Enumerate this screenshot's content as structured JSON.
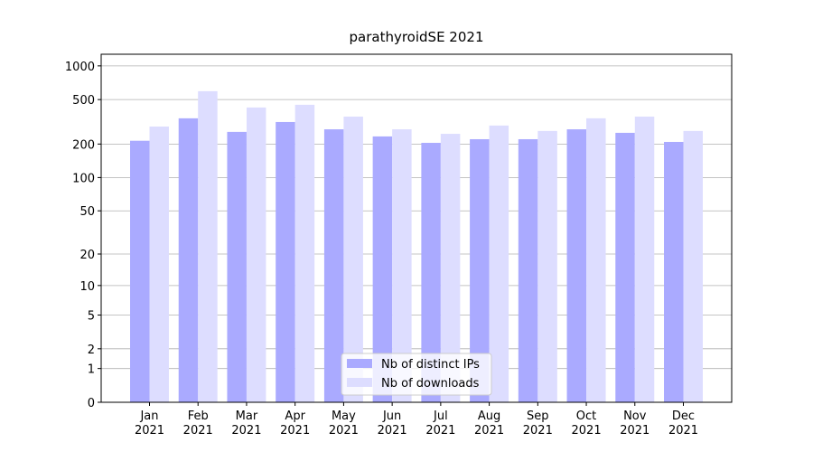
{
  "chart_data": {
    "type": "bar",
    "title": "parathyroidSE 2021",
    "categories": [
      "Jan\n2021",
      "Feb\n2021",
      "Mar\n2021",
      "Apr\n2021",
      "May\n2021",
      "Jun\n2021",
      "Jul\n2021",
      "Aug\n2021",
      "Sep\n2021",
      "Oct\n2021",
      "Nov\n2021",
      "Dec\n2021"
    ],
    "series": [
      {
        "name": "Nb of distinct IPs",
        "color": "#aaaaff",
        "values": [
          214,
          340,
          257,
          315,
          271,
          234,
          205,
          221,
          221,
          271,
          252,
          209
        ]
      },
      {
        "name": "Nb of downloads",
        "color": "#ddddff",
        "values": [
          287,
          594,
          425,
          449,
          352,
          271,
          247,
          293,
          262,
          340,
          352,
          262
        ]
      }
    ],
    "yscale": "log1p",
    "ylim": [
      0,
      1270
    ],
    "yticks": [
      0,
      1,
      2,
      5,
      10,
      20,
      50,
      100,
      200,
      500,
      1000
    ],
    "grid": true,
    "legend": "lower center"
  }
}
